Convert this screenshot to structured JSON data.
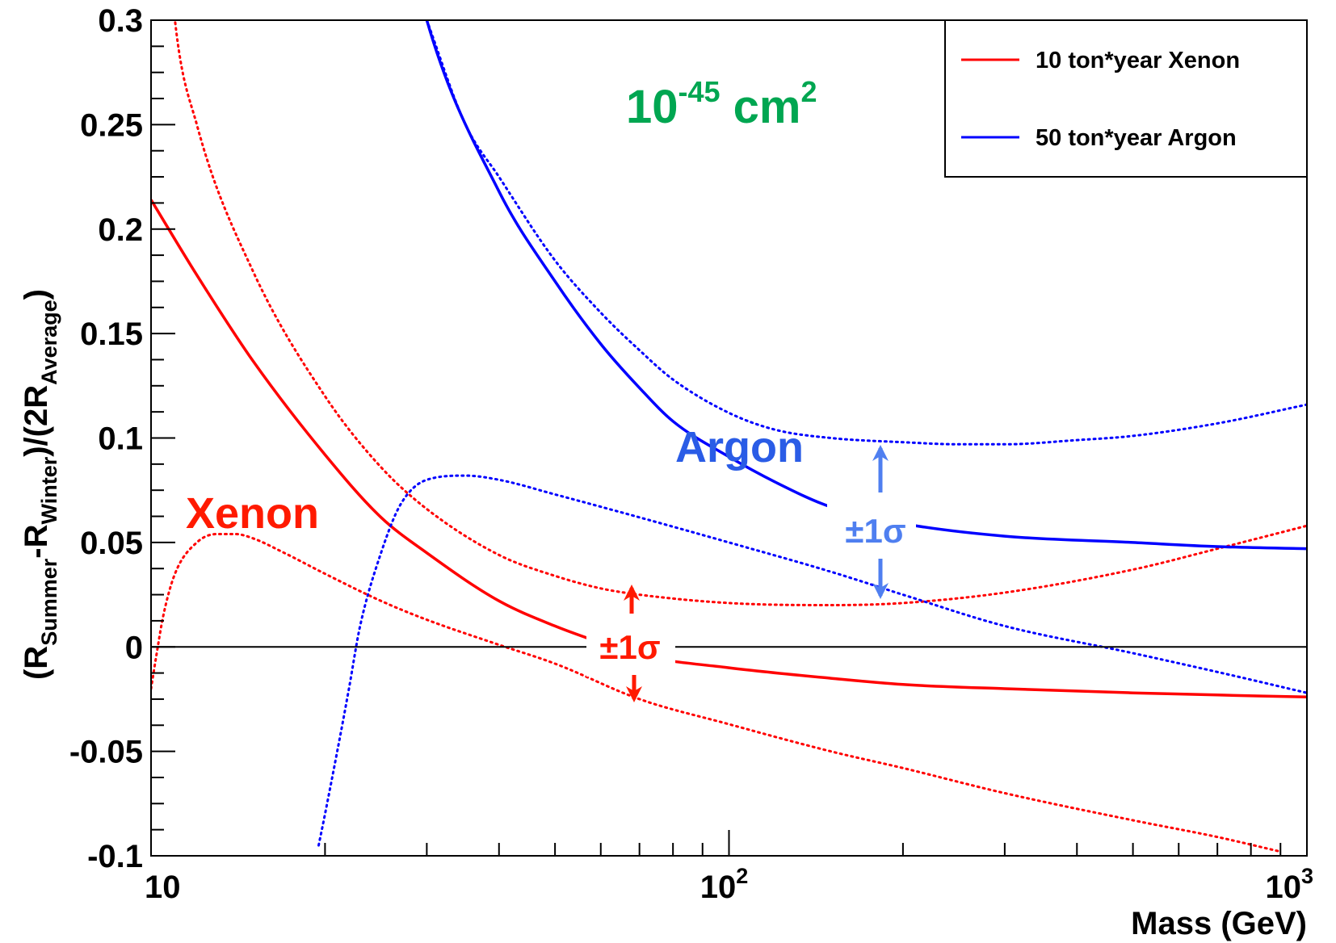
{
  "chart_data": {
    "type": "line",
    "title": "",
    "xlabel": "Mass (GeV)",
    "ylabel": "(R_Summer-R_Winter)/(2R_Average)",
    "ylabel_parts": {
      "a": "(R",
      "b": "Summer",
      "c": "-R",
      "d": "Winter",
      "e": ")/(2R",
      "f": "Average",
      "g": ")"
    },
    "x_scale": "log",
    "xlim": [
      10,
      1000
    ],
    "ylim": [
      -0.1,
      0.3
    ],
    "x_ticks": [
      {
        "value": 10,
        "base": "10",
        "exp": ""
      },
      {
        "value": 100,
        "base": "10",
        "exp": "2"
      },
      {
        "value": 1000,
        "base": "10",
        "exp": "3"
      }
    ],
    "y_ticks": [
      {
        "value": -0.1,
        "label": "-0.1"
      },
      {
        "value": -0.05,
        "label": "-0.05"
      },
      {
        "value": 0,
        "label": "0"
      },
      {
        "value": 0.05,
        "label": "0.05"
      },
      {
        "value": 0.1,
        "label": "0.1"
      },
      {
        "value": 0.15,
        "label": "0.15"
      },
      {
        "value": 0.2,
        "label": "0.2"
      },
      {
        "value": 0.25,
        "label": "0.25"
      },
      {
        "value": 0.3,
        "label": "0.3"
      }
    ],
    "grid": false,
    "legend_position": "top-right",
    "legend": [
      {
        "label": "10 ton*year Xenon",
        "color": "#ff0000"
      },
      {
        "label": "50 ton*year Argon",
        "color": "#0000ff"
      }
    ],
    "series": [
      {
        "name": "10 ton*year Xenon",
        "style": "solid",
        "color": "#ff0000",
        "x": [
          10,
          12,
          15,
          20,
          25,
          30,
          40,
          50,
          60,
          70,
          100,
          150,
          200,
          300,
          500,
          700,
          1000
        ],
        "y": [
          0.214,
          0.178,
          0.137,
          0.092,
          0.062,
          0.045,
          0.022,
          0.01,
          0.002,
          -0.004,
          -0.01,
          -0.015,
          -0.018,
          -0.02,
          -0.022,
          -0.023,
          -0.024
        ]
      },
      {
        "name": "Xenon +1σ",
        "style": "dotted",
        "color": "#ff0000",
        "x": [
          10,
          11,
          12,
          15,
          20,
          25,
          30,
          40,
          50,
          60,
          70,
          100,
          150,
          200,
          300,
          500,
          700,
          1000
        ],
        "y": [
          0.45,
          0.3,
          0.25,
          0.18,
          0.12,
          0.086,
          0.066,
          0.044,
          0.034,
          0.028,
          0.025,
          0.021,
          0.02,
          0.021,
          0.026,
          0.037,
          0.047,
          0.058
        ]
      },
      {
        "name": "Xenon -1σ",
        "style": "dotted",
        "color": "#ff0000",
        "x": [
          10,
          10.2,
          10.5,
          11,
          12,
          13,
          14,
          15,
          17,
          20,
          25,
          30,
          40,
          50,
          70,
          100,
          150,
          200,
          300,
          500,
          700,
          900
        ],
        "y": [
          -0.02,
          -0.005,
          0.015,
          0.035,
          0.05,
          0.054,
          0.054,
          0.052,
          0.045,
          0.035,
          0.022,
          0.013,
          0.001,
          -0.008,
          -0.025,
          -0.037,
          -0.05,
          -0.058,
          -0.07,
          -0.083,
          -0.091,
          -0.098
        ]
      },
      {
        "name": "50 ton*year Argon",
        "style": "solid",
        "color": "#0000ff",
        "x": [
          20,
          30,
          40,
          50,
          60,
          70,
          80,
          100,
          120,
          150,
          200,
          300,
          500,
          700,
          1000
        ],
        "y": [
          0.52,
          0.3,
          0.218,
          0.175,
          0.145,
          0.124,
          0.108,
          0.091,
          0.079,
          0.067,
          0.059,
          0.053,
          0.05,
          0.048,
          0.047
        ]
      },
      {
        "name": "Argon +1σ",
        "style": "dotted",
        "color": "#0000ff",
        "x": [
          30,
          35,
          40,
          50,
          60,
          70,
          80,
          100,
          120,
          150,
          200,
          250,
          300,
          400,
          500,
          700,
          1000
        ],
        "y": [
          0.3,
          0.25,
          0.225,
          0.185,
          0.16,
          0.142,
          0.128,
          0.112,
          0.104,
          0.1,
          0.098,
          0.097,
          0.097,
          0.099,
          0.101,
          0.107,
          0.116
        ]
      },
      {
        "name": "Argon -1σ",
        "style": "dotted",
        "color": "#0000ff",
        "x": [
          19.5,
          20,
          21,
          22,
          23,
          25,
          27,
          30,
          35,
          40,
          50,
          70,
          100,
          150,
          200,
          300,
          500,
          700,
          1000
        ],
        "y": [
          -0.095,
          -0.08,
          -0.05,
          -0.02,
          0.01,
          0.045,
          0.068,
          0.08,
          0.082,
          0.08,
          0.073,
          0.062,
          0.05,
          0.036,
          0.025,
          0.01,
          -0.003,
          -0.012,
          -0.022
        ]
      }
    ],
    "annotations": {
      "cross_section": {
        "base": "10",
        "exp": "-45",
        "mid": " cm",
        "exp2": "2",
        "color": "#00a651"
      },
      "argon_label": {
        "text": "Argon",
        "color": "#2a5ce6"
      },
      "xenon_label": {
        "text": "Xenon",
        "color": "#ff1a00"
      },
      "argon_sigma": {
        "text": "±1σ",
        "color": "#4f7ff0"
      },
      "xenon_sigma": {
        "text": "±1σ",
        "color": "#ff1a00"
      }
    }
  }
}
